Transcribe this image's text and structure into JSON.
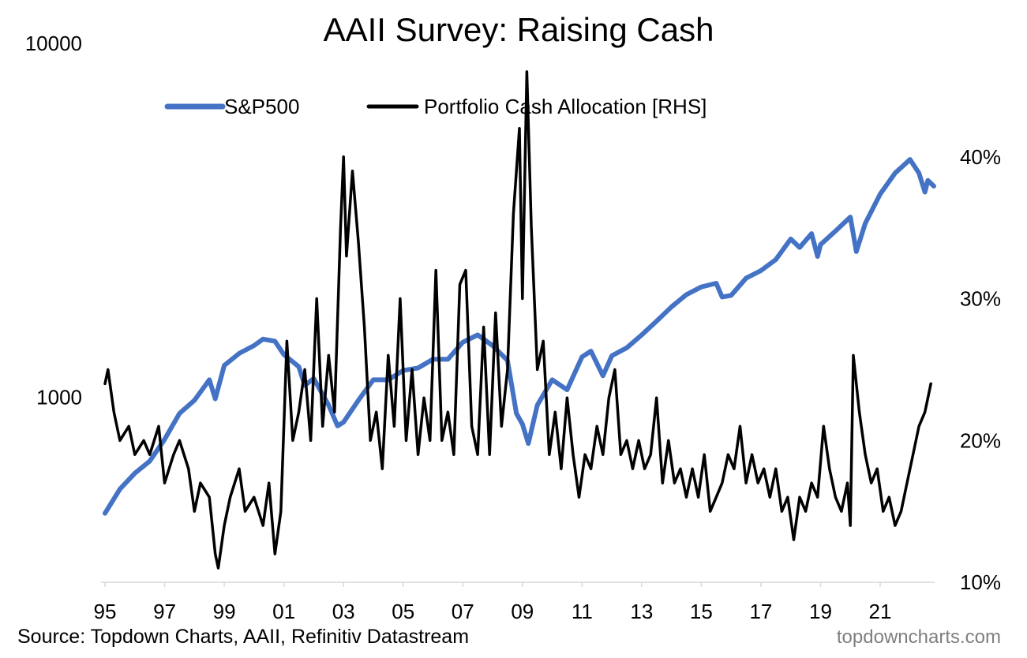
{
  "chart_data": {
    "type": "line",
    "title": "AAII Survey: Raising Cash",
    "x_ticks": [
      "95",
      "97",
      "99",
      "01",
      "03",
      "05",
      "07",
      "09",
      "11",
      "13",
      "15",
      "17",
      "19",
      "21"
    ],
    "x_range": [
      1995,
      2022.8
    ],
    "left_axis": {
      "scale": "log",
      "ticks": [
        "1000",
        "10000"
      ],
      "range": [
        300,
        10000
      ]
    },
    "right_axis": {
      "scale": "linear",
      "ticks": [
        "10%",
        "20%",
        "30%",
        "40%"
      ],
      "range": [
        10,
        48
      ]
    },
    "legend": {
      "placement": "top",
      "entries": [
        "S&P500",
        "Portfolio Cash Allocation [RHS]"
      ]
    },
    "colors": {
      "sp500": "#4472c4",
      "cash": "#000000"
    },
    "grid": false,
    "series": [
      {
        "name": "S&P500",
        "axis": "left",
        "points": [
          [
            1995.0,
            470
          ],
          [
            1995.5,
            550
          ],
          [
            1996.0,
            610
          ],
          [
            1996.5,
            660
          ],
          [
            1997.0,
            760
          ],
          [
            1997.5,
            900
          ],
          [
            1998.0,
            980
          ],
          [
            1998.5,
            1120
          ],
          [
            1998.7,
            990
          ],
          [
            1999.0,
            1230
          ],
          [
            1999.5,
            1330
          ],
          [
            2000.0,
            1400
          ],
          [
            2000.3,
            1460
          ],
          [
            2000.7,
            1440
          ],
          [
            2001.0,
            1320
          ],
          [
            2001.5,
            1220
          ],
          [
            2001.7,
            1080
          ],
          [
            2002.0,
            1130
          ],
          [
            2002.5,
            950
          ],
          [
            2002.8,
            830
          ],
          [
            2003.0,
            850
          ],
          [
            2003.5,
            980
          ],
          [
            2004.0,
            1120
          ],
          [
            2004.5,
            1120
          ],
          [
            2005.0,
            1190
          ],
          [
            2005.5,
            1210
          ],
          [
            2006.0,
            1280
          ],
          [
            2006.5,
            1280
          ],
          [
            2007.0,
            1430
          ],
          [
            2007.5,
            1500
          ],
          [
            2008.0,
            1400
          ],
          [
            2008.5,
            1270
          ],
          [
            2008.8,
            900
          ],
          [
            2009.0,
            840
          ],
          [
            2009.2,
            740
          ],
          [
            2009.5,
            950
          ],
          [
            2010.0,
            1120
          ],
          [
            2010.5,
            1050
          ],
          [
            2011.0,
            1300
          ],
          [
            2011.3,
            1350
          ],
          [
            2011.7,
            1150
          ],
          [
            2012.0,
            1310
          ],
          [
            2012.5,
            1380
          ],
          [
            2013.0,
            1500
          ],
          [
            2013.5,
            1640
          ],
          [
            2014.0,
            1800
          ],
          [
            2014.5,
            1950
          ],
          [
            2015.0,
            2050
          ],
          [
            2015.5,
            2100
          ],
          [
            2015.7,
            1920
          ],
          [
            2016.0,
            1940
          ],
          [
            2016.5,
            2170
          ],
          [
            2017.0,
            2280
          ],
          [
            2017.5,
            2450
          ],
          [
            2018.0,
            2800
          ],
          [
            2018.3,
            2650
          ],
          [
            2018.7,
            2900
          ],
          [
            2018.9,
            2500
          ],
          [
            2019.0,
            2700
          ],
          [
            2019.5,
            2950
          ],
          [
            2020.0,
            3230
          ],
          [
            2020.2,
            2580
          ],
          [
            2020.5,
            3100
          ],
          [
            2021.0,
            3750
          ],
          [
            2021.5,
            4300
          ],
          [
            2022.0,
            4700
          ],
          [
            2022.3,
            4300
          ],
          [
            2022.5,
            3800
          ],
          [
            2022.6,
            4100
          ],
          [
            2022.8,
            3950
          ]
        ]
      },
      {
        "name": "Portfolio Cash Allocation [RHS]",
        "axis": "right",
        "points": [
          [
            1995.0,
            24
          ],
          [
            1995.1,
            25
          ],
          [
            1995.3,
            22
          ],
          [
            1995.5,
            20
          ],
          [
            1995.8,
            21
          ],
          [
            1996.0,
            19
          ],
          [
            1996.3,
            20
          ],
          [
            1996.5,
            19
          ],
          [
            1996.8,
            21
          ],
          [
            1997.0,
            17
          ],
          [
            1997.3,
            19
          ],
          [
            1997.5,
            20
          ],
          [
            1997.8,
            18
          ],
          [
            1998.0,
            15
          ],
          [
            1998.2,
            17
          ],
          [
            1998.5,
            16
          ],
          [
            1998.7,
            12
          ],
          [
            1998.8,
            11
          ],
          [
            1999.0,
            14
          ],
          [
            1999.2,
            16
          ],
          [
            1999.5,
            18
          ],
          [
            1999.7,
            15
          ],
          [
            2000.0,
            16
          ],
          [
            2000.3,
            14
          ],
          [
            2000.5,
            17
          ],
          [
            2000.7,
            12
          ],
          [
            2000.9,
            15
          ],
          [
            2001.1,
            27
          ],
          [
            2001.3,
            20
          ],
          [
            2001.5,
            22
          ],
          [
            2001.7,
            25
          ],
          [
            2001.9,
            20
          ],
          [
            2002.1,
            30
          ],
          [
            2002.3,
            21
          ],
          [
            2002.5,
            26
          ],
          [
            2002.7,
            22
          ],
          [
            2002.9,
            35
          ],
          [
            2003.0,
            40
          ],
          [
            2003.1,
            33
          ],
          [
            2003.3,
            39
          ],
          [
            2003.5,
            34
          ],
          [
            2003.7,
            28
          ],
          [
            2003.9,
            20
          ],
          [
            2004.1,
            22
          ],
          [
            2004.3,
            18
          ],
          [
            2004.5,
            26
          ],
          [
            2004.7,
            21
          ],
          [
            2004.9,
            30
          ],
          [
            2005.1,
            20
          ],
          [
            2005.3,
            25
          ],
          [
            2005.5,
            19
          ],
          [
            2005.7,
            23
          ],
          [
            2005.9,
            20
          ],
          [
            2006.1,
            32
          ],
          [
            2006.3,
            20
          ],
          [
            2006.5,
            22
          ],
          [
            2006.7,
            19
          ],
          [
            2006.9,
            31
          ],
          [
            2007.1,
            32
          ],
          [
            2007.3,
            21
          ],
          [
            2007.5,
            19
          ],
          [
            2007.7,
            28
          ],
          [
            2007.9,
            19
          ],
          [
            2008.1,
            29
          ],
          [
            2008.3,
            21
          ],
          [
            2008.5,
            25
          ],
          [
            2008.7,
            36
          ],
          [
            2008.9,
            42
          ],
          [
            2009.0,
            30
          ],
          [
            2009.15,
            46
          ],
          [
            2009.3,
            35
          ],
          [
            2009.5,
            25
          ],
          [
            2009.7,
            27
          ],
          [
            2009.9,
            19
          ],
          [
            2010.1,
            22
          ],
          [
            2010.3,
            18
          ],
          [
            2010.5,
            23
          ],
          [
            2010.7,
            19
          ],
          [
            2010.9,
            16
          ],
          [
            2011.1,
            19
          ],
          [
            2011.3,
            18
          ],
          [
            2011.5,
            21
          ],
          [
            2011.7,
            19
          ],
          [
            2011.9,
            23
          ],
          [
            2012.1,
            25
          ],
          [
            2012.3,
            19
          ],
          [
            2012.5,
            20
          ],
          [
            2012.7,
            18
          ],
          [
            2012.9,
            20
          ],
          [
            2013.1,
            18
          ],
          [
            2013.3,
            19
          ],
          [
            2013.5,
            23
          ],
          [
            2013.7,
            17
          ],
          [
            2013.9,
            20
          ],
          [
            2014.1,
            17
          ],
          [
            2014.3,
            18
          ],
          [
            2014.5,
            16
          ],
          [
            2014.7,
            18
          ],
          [
            2014.9,
            16
          ],
          [
            2015.1,
            19
          ],
          [
            2015.3,
            15
          ],
          [
            2015.5,
            16
          ],
          [
            2015.7,
            17
          ],
          [
            2015.9,
            19
          ],
          [
            2016.1,
            18
          ],
          [
            2016.3,
            21
          ],
          [
            2016.5,
            17
          ],
          [
            2016.7,
            19
          ],
          [
            2016.9,
            17
          ],
          [
            2017.1,
            18
          ],
          [
            2017.3,
            16
          ],
          [
            2017.5,
            18
          ],
          [
            2017.7,
            15
          ],
          [
            2017.9,
            16
          ],
          [
            2018.1,
            13
          ],
          [
            2018.3,
            16
          ],
          [
            2018.5,
            15
          ],
          [
            2018.7,
            17
          ],
          [
            2018.9,
            16
          ],
          [
            2019.1,
            21
          ],
          [
            2019.3,
            18
          ],
          [
            2019.5,
            16
          ],
          [
            2019.7,
            15
          ],
          [
            2019.9,
            17
          ],
          [
            2020.0,
            14
          ],
          [
            2020.1,
            26
          ],
          [
            2020.3,
            22
          ],
          [
            2020.5,
            19
          ],
          [
            2020.7,
            17
          ],
          [
            2020.9,
            18
          ],
          [
            2021.1,
            15
          ],
          [
            2021.3,
            16
          ],
          [
            2021.5,
            14
          ],
          [
            2021.7,
            15
          ],
          [
            2021.9,
            17
          ],
          [
            2022.1,
            19
          ],
          [
            2022.3,
            21
          ],
          [
            2022.5,
            22
          ],
          [
            2022.7,
            24
          ]
        ]
      }
    ],
    "source": "Source: Topdown Charts, AAII, Refinitiv Datastream",
    "brand": "topdowncharts.com"
  }
}
